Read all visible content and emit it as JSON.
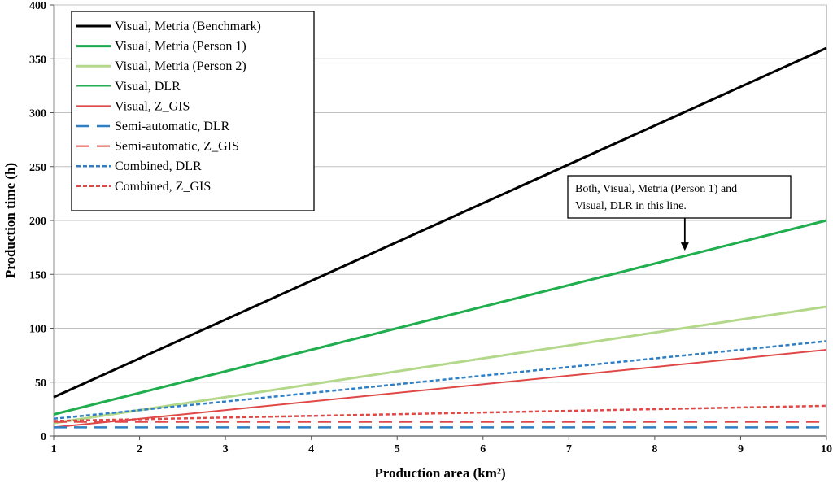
{
  "chart_data": {
    "type": "line",
    "title": "",
    "xlabel": "Production area (km²)",
    "ylabel": "Production time (h)",
    "xlim": [
      1,
      10
    ],
    "ylim": [
      0,
      400
    ],
    "xticks": [
      1,
      2,
      3,
      4,
      5,
      6,
      7,
      8,
      9,
      10
    ],
    "yticks": [
      0,
      50,
      100,
      150,
      200,
      250,
      300,
      350,
      400
    ],
    "grid": "horizontal",
    "legend_position": "top-left",
    "series": [
      {
        "name": "Visual, Metria (Benchmark)",
        "x": [
          1,
          10
        ],
        "y": [
          36,
          360
        ],
        "color": "#000000",
        "style": "solid",
        "width": 3
      },
      {
        "name": "Visual, Metria (Person 1)",
        "x": [
          1,
          10
        ],
        "y": [
          20,
          200
        ],
        "color": "#1aab4b",
        "style": "solid",
        "width": 3
      },
      {
        "name": "Visual, Metria (Person 2)",
        "x": [
          1,
          10
        ],
        "y": [
          12,
          120
        ],
        "color": "#b3d88a",
        "style": "solid",
        "width": 3
      },
      {
        "name": "Visual, DLR",
        "x": [
          1,
          10
        ],
        "y": [
          20,
          200
        ],
        "color": "#22b04f",
        "style": "solid",
        "width": 1.5
      },
      {
        "name": "Visual, Z_GIS",
        "x": [
          1,
          10
        ],
        "y": [
          8,
          80
        ],
        "color": "#e04848",
        "style": "solid",
        "width": 2
      },
      {
        "name": "Semi-automatic, DLR",
        "x": [
          1,
          10
        ],
        "y": [
          8,
          8
        ],
        "color": "#2f7fc4",
        "style": "longdash",
        "width": 2.5
      },
      {
        "name": "Semi-automatic, Z_GIS",
        "x": [
          1,
          10
        ],
        "y": [
          13,
          13
        ],
        "color": "#e04848",
        "style": "longdash",
        "width": 2
      },
      {
        "name": "Combined, DLR",
        "x": [
          1,
          10
        ],
        "y": [
          16,
          88
        ],
        "color": "#2f7fc4",
        "style": "shortdash",
        "width": 2.5
      },
      {
        "name": "Combined, Z_GIS",
        "x": [
          1,
          10
        ],
        "y": [
          14,
          28
        ],
        "color": "#e04848",
        "style": "shortdash",
        "width": 2.5
      }
    ],
    "annotations": [
      {
        "lines": [
          "Both, Visual, Metria (Person 1) and",
          "Visual, DLR in this line."
        ],
        "arrow_to": {
          "x": 8.35,
          "y": 172
        }
      }
    ]
  }
}
